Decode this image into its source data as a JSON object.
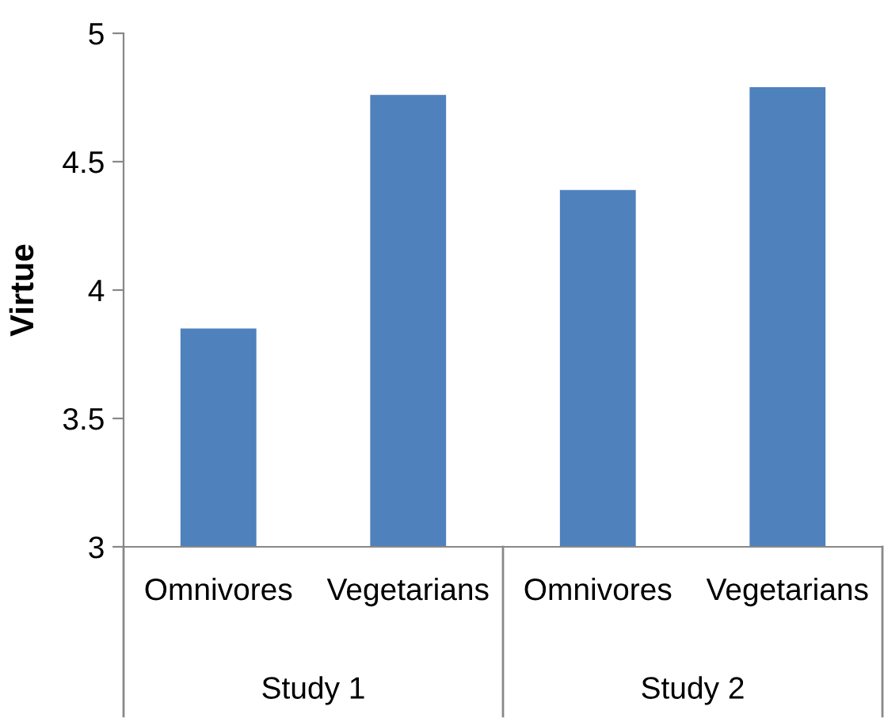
{
  "chart_data": {
    "type": "bar",
    "ylabel": "Virtue",
    "categories": [
      "Omnivores",
      "Vegetarians",
      "Omnivores",
      "Vegetarians"
    ],
    "values": [
      3.85,
      4.76,
      4.39,
      4.79
    ],
    "color": "#4f81bd",
    "ylim": [
      3,
      5
    ],
    "yticks": [
      3,
      3.5,
      4,
      4.5,
      5
    ],
    "grid": false,
    "annotations": [
      "Study 1",
      "Study 2"
    ]
  }
}
